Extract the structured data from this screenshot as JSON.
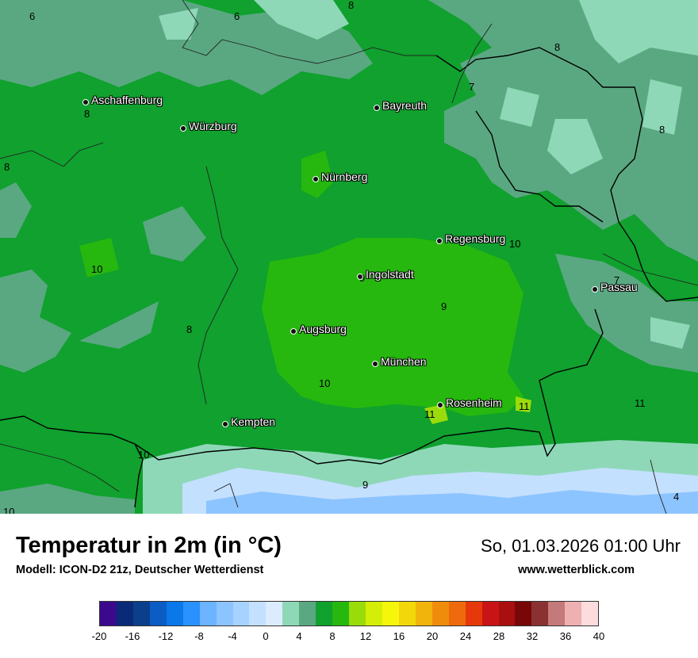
{
  "title": "Temperatur in 2m (in °C)",
  "subtitle": "Modell: ICON-D2 21z, Deutscher Wetterdienst",
  "datetime": "So, 01.03.2026 01:00 Uhr",
  "website": "www.wetterblick.com",
  "cities": [
    {
      "name": "Aschaffenburg"
    },
    {
      "name": "Würzburg"
    },
    {
      "name": "Bayreuth"
    },
    {
      "name": "Nürnberg"
    },
    {
      "name": "Regensburg"
    },
    {
      "name": "Ingolstadt"
    },
    {
      "name": "Passau"
    },
    {
      "name": "Augsburg"
    },
    {
      "name": "München"
    },
    {
      "name": "Rosenheim"
    },
    {
      "name": "Kempten"
    }
  ],
  "map_values": [
    "6",
    "6",
    "8",
    "8",
    "7",
    "8",
    "8",
    "8",
    "10",
    "10",
    "9",
    "9",
    "7",
    "8",
    "10",
    "11",
    "11",
    "11",
    "9",
    "4",
    "10",
    "10"
  ],
  "legend": {
    "colors": [
      "#3b0a8c",
      "#0a2a78",
      "#0b3f8c",
      "#0b5cc4",
      "#0a78e8",
      "#2a92ff",
      "#6cb4ff",
      "#8cc4ff",
      "#a6d2ff",
      "#c4e0ff",
      "#dcecff",
      "#8ed8b8",
      "#5aa882",
      "#10a12e",
      "#26b80e",
      "#9adc0a",
      "#d4ee08",
      "#f6f60a",
      "#f2d80a",
      "#f0b40c",
      "#f08c0c",
      "#ee6a0c",
      "#e6380a",
      "#c81414",
      "#a81010",
      "#780808",
      "#8a3232",
      "#c47a7a",
      "#eeb0b0",
      "#fcdcdc"
    ],
    "ticks": [
      "-20",
      "-16",
      "-12",
      "-8",
      "-4",
      "0",
      "4",
      "8",
      "12",
      "16",
      "20",
      "24",
      "28",
      "32",
      "36",
      "40"
    ]
  }
}
